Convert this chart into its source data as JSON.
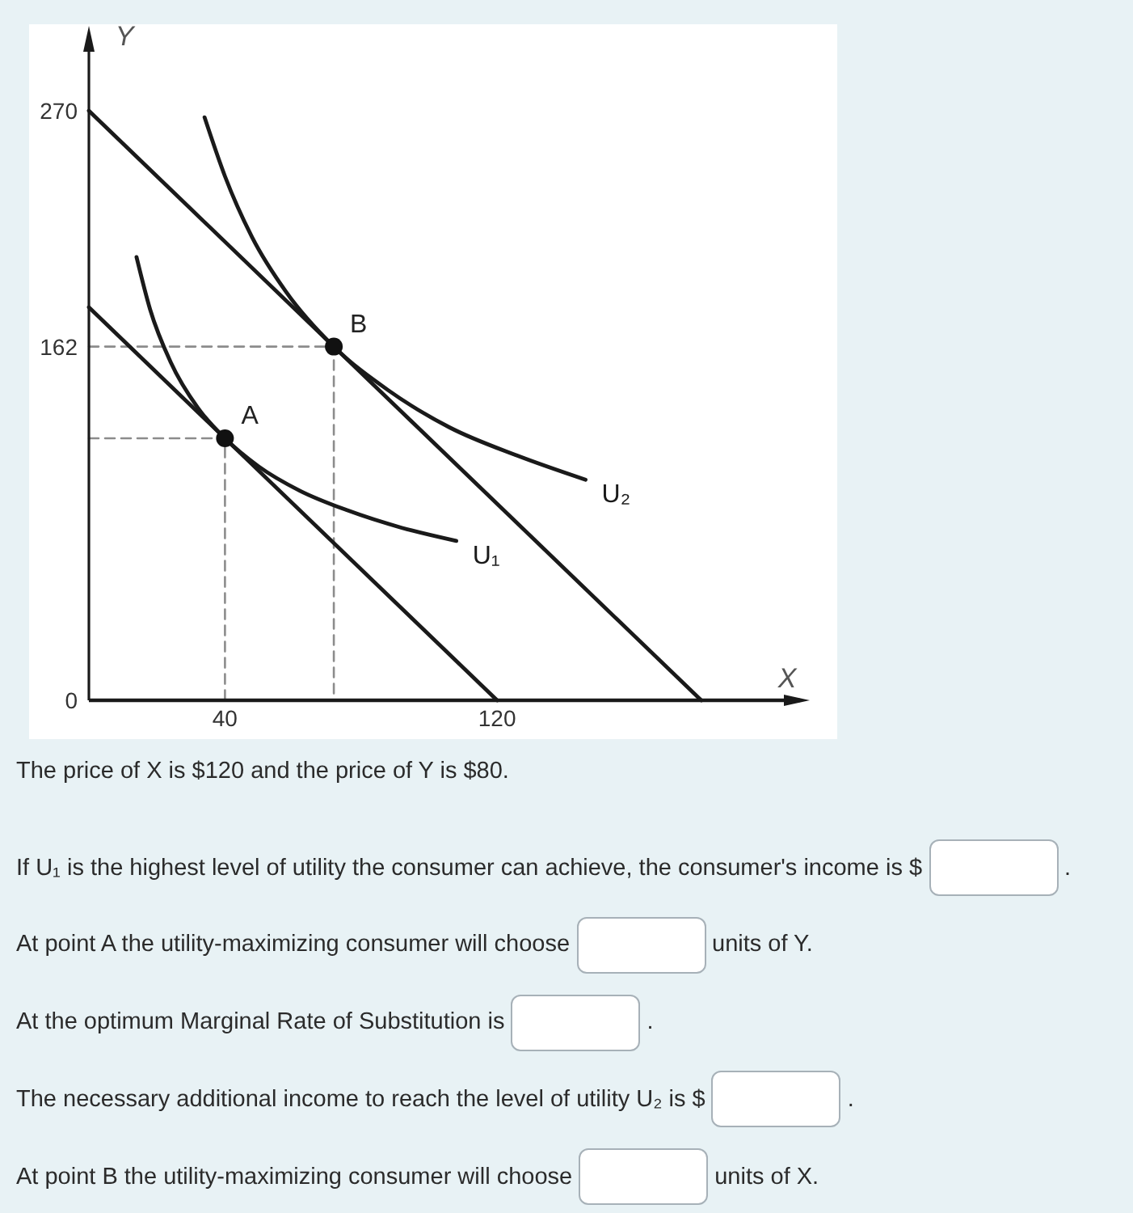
{
  "chart_data": {
    "type": "line",
    "xlabel": "X",
    "ylabel": "Y",
    "xlim": [
      0,
      210
    ],
    "ylim": [
      0,
      300
    ],
    "xticks": [
      40,
      120
    ],
    "yticks": [
      0,
      162,
      270
    ],
    "series": [
      {
        "type": "line",
        "line_style": "dashed",
        "color": "#8c8c8c",
        "x": [
          0,
          72,
          72
        ],
        "values": [
          162,
          162,
          0
        ]
      },
      {
        "type": "line",
        "line_style": "dashed",
        "color": "#8c8c8c",
        "x": [
          0,
          40,
          40
        ],
        "values": [
          120,
          120,
          0
        ]
      },
      {
        "color": "#1a1a1a",
        "x": [
          0,
          180
        ],
        "values": [
          270,
          0
        ]
      },
      {
        "color": "#1a1a1a",
        "x": [
          0,
          120
        ],
        "values": [
          180,
          0
        ]
      },
      {
        "name": "U₁",
        "color": "#1a1a1a",
        "x": [
          14,
          18,
          24,
          32,
          40,
          50,
          62,
          76,
          92,
          108
        ],
        "values": [
          203,
          179,
          155,
          134,
          120,
          107,
          96,
          87,
          79,
          73
        ]
      },
      {
        "name": "U₂",
        "color": "#1a1a1a",
        "x": [
          34,
          40,
          48,
          58,
          72,
          88,
          106,
          126,
          146
        ],
        "values": [
          267,
          240,
          212,
          187,
          162,
          142,
          125,
          112,
          101
        ]
      },
      {
        "type": "scatter",
        "marker": "circle",
        "color": "#111111",
        "x": [
          40,
          72
        ],
        "values": [
          120,
          162
        ]
      }
    ],
    "annotations": [
      {
        "text": "A",
        "x": 40,
        "y": 120
      },
      {
        "text": "B",
        "x": 72,
        "y": 162
      },
      "The price of X is $120 and the price of Y is $80.",
      "If U₁ is the highest level of utility the consumer can achieve, the consumer's income is $",
      ".",
      "At point A the utility-maximizing consumer will choose",
      "units of Y.",
      "At the optimum Marginal Rate of Substitution is",
      ".",
      "The necessary additional income to reach the level of utility U₂ is $",
      ".",
      "At point B the utility-maximizing consumer will choose",
      "units of X."
    ]
  }
}
